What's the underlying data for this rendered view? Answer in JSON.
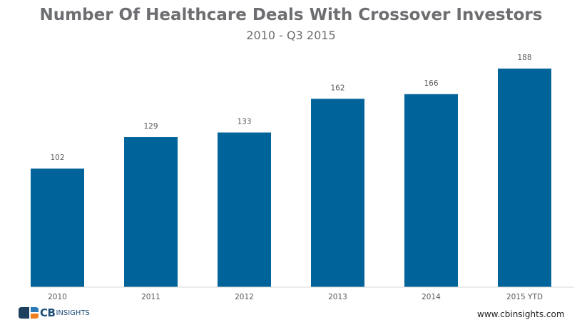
{
  "chart_data": {
    "type": "bar",
    "title": "Number Of Healthcare Deals With Crossover Investors",
    "subtitle": "2010 - Q3 2015",
    "categories": [
      "2010",
      "2011",
      "2012",
      "2013",
      "2014",
      "2015 YTD"
    ],
    "values": [
      102,
      129,
      133,
      162,
      166,
      188
    ],
    "xlabel": "",
    "ylabel": "",
    "ylim": [
      0,
      188
    ],
    "grid": false,
    "legend": "none",
    "bar_color": "#00649a"
  },
  "footer": {
    "brand_bold": "CB",
    "brand_light": "INSIGHTS",
    "website": "www.cbinsights.com"
  }
}
